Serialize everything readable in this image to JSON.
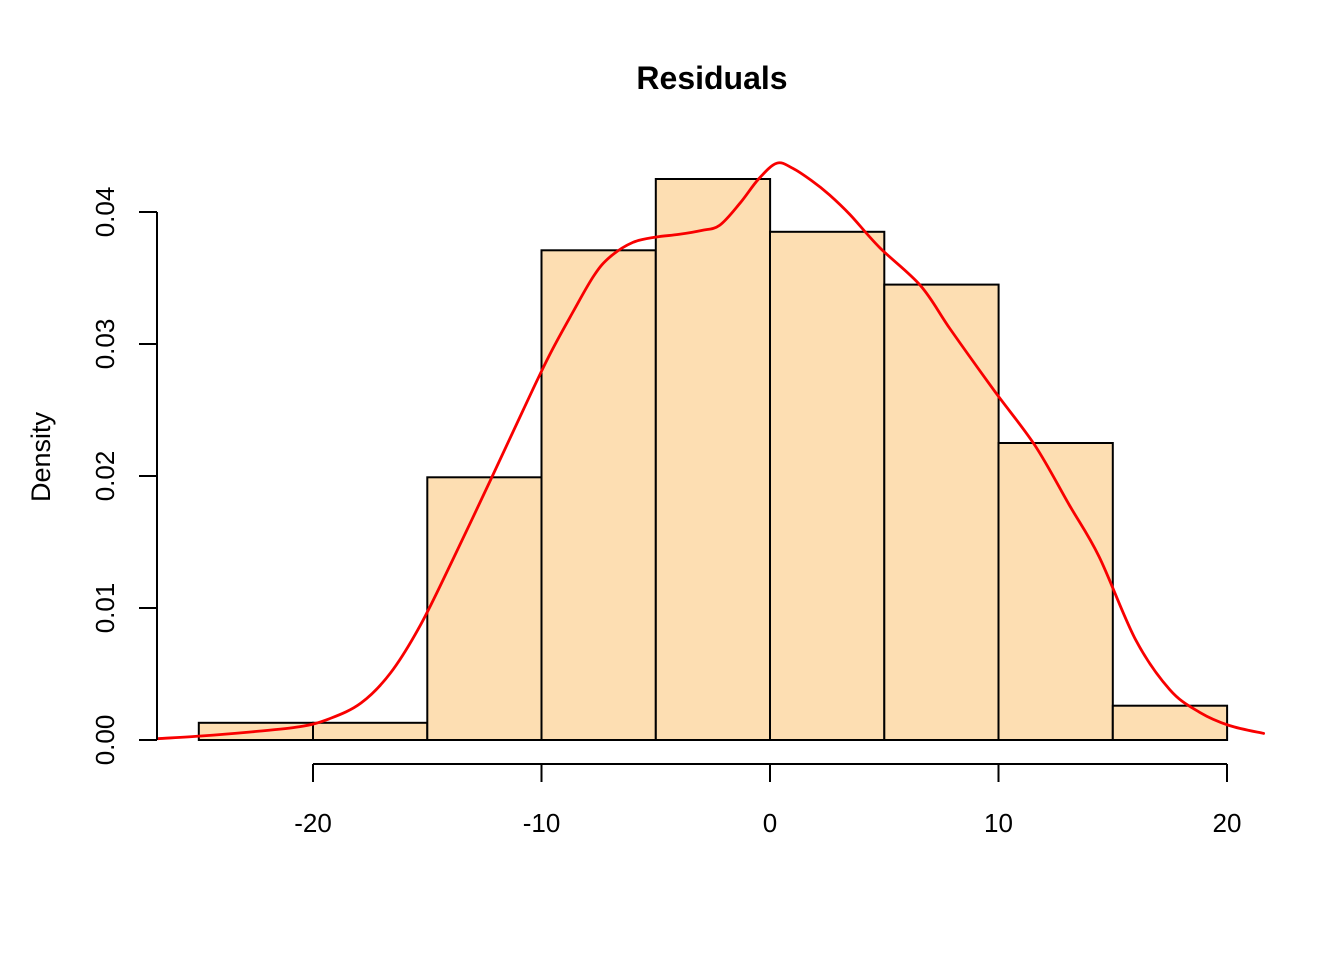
{
  "chart_data": {
    "type": "bar",
    "subtype": "histogram-with-density-curve",
    "title": "Residuals",
    "xlabel": "",
    "ylabel": "Density",
    "grid": false,
    "legend": "none",
    "xlim": [
      -26.8,
      21.8
    ],
    "ylim": [
      0,
      0.0455
    ],
    "bin_breaks": [
      -25,
      -20,
      -15,
      -10,
      -5,
      0,
      5,
      10,
      15,
      20
    ],
    "bin_densities": [
      0.0013,
      0.0013,
      0.0199,
      0.0371,
      0.0425,
      0.0385,
      0.0345,
      0.0225,
      0.0026
    ],
    "x_ticks": [
      {
        "v": -20,
        "label": "-20"
      },
      {
        "v": -10,
        "label": "-10"
      },
      {
        "v": 0,
        "label": "0"
      },
      {
        "v": 10,
        "label": "10"
      },
      {
        "v": 20,
        "label": "20"
      }
    ],
    "y_ticks": [
      {
        "v": 0.0,
        "label": "0.00"
      },
      {
        "v": 0.01,
        "label": "0.01"
      },
      {
        "v": 0.02,
        "label": "0.02"
      },
      {
        "v": 0.03,
        "label": "0.03"
      },
      {
        "v": 0.04,
        "label": "0.04"
      }
    ],
    "density_curve": [
      [
        -26.8,
        0.0001
      ],
      [
        -24.9,
        0.0003
      ],
      [
        -22.8,
        0.0006
      ],
      [
        -20.6,
        0.001
      ],
      [
        -19.3,
        0.0016
      ],
      [
        -17.9,
        0.0028
      ],
      [
        -16.6,
        0.0051
      ],
      [
        -15.3,
        0.0087
      ],
      [
        -13.9,
        0.0136
      ],
      [
        -12.2,
        0.0198
      ],
      [
        -10.8,
        0.025
      ],
      [
        -9.7,
        0.029
      ],
      [
        -8.6,
        0.0325
      ],
      [
        -7.7,
        0.0352
      ],
      [
        -7.0,
        0.0366
      ],
      [
        -6.0,
        0.0377
      ],
      [
        -5.0,
        0.0381
      ],
      [
        -4.0,
        0.0383
      ],
      [
        -3.0,
        0.0386
      ],
      [
        -2.2,
        0.039
      ],
      [
        -1.3,
        0.0407
      ],
      [
        -0.5,
        0.0425
      ],
      [
        0.3,
        0.0437
      ],
      [
        1.0,
        0.0433
      ],
      [
        1.8,
        0.0424
      ],
      [
        2.6,
        0.0413
      ],
      [
        3.5,
        0.0398
      ],
      [
        4.8,
        0.0373
      ],
      [
        6.6,
        0.0344
      ],
      [
        7.9,
        0.0311
      ],
      [
        9.8,
        0.0265
      ],
      [
        11.6,
        0.0223
      ],
      [
        13.1,
        0.0178
      ],
      [
        14.4,
        0.0139
      ],
      [
        16.0,
        0.0076
      ],
      [
        17.5,
        0.0038
      ],
      [
        18.8,
        0.0021
      ],
      [
        20.1,
        0.0011
      ],
      [
        21.6,
        0.0005
      ]
    ],
    "colors": {
      "bar_fill": "#FDDEB2",
      "bar_stroke": "#000000",
      "curve": "#F80000",
      "axis": "#000000",
      "background": "#FFFFFF"
    }
  }
}
